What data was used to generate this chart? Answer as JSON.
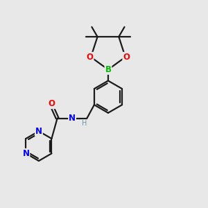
{
  "bg_color": "#e8e8e8",
  "bond_color": "#1a1a1a",
  "N_color": "#0000ff",
  "O_color": "#ff0000",
  "B_color": "#00bb00",
  "H_color": "#5f9ea0",
  "line_width": 1.6,
  "font_size": 8.5,
  "font_size_small": 7.5,
  "figsize": [
    3.0,
    3.0
  ],
  "dpi": 100,
  "xlim": [
    0,
    10
  ],
  "ylim": [
    0,
    10
  ]
}
